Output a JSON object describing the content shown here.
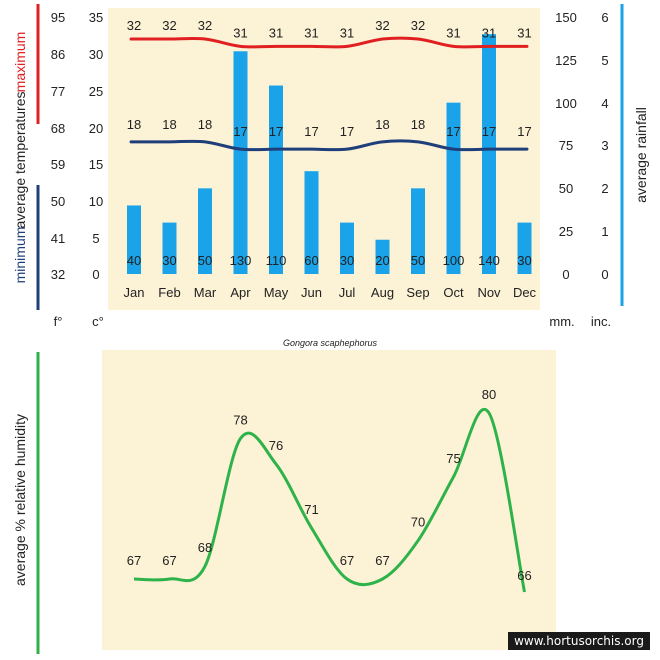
{
  "caption": "Gongora scaphephorus",
  "watermark": "www.hortusorchis.org",
  "colors": {
    "background": "#fcf2d6",
    "maximum": "#e02020",
    "minimum": "#1f3f7a",
    "rainfall_bar": "#1aa3e8",
    "rainfall_axis": "#1aa3e8",
    "humidity": "#2eb34a"
  },
  "labels": {
    "maximum": "maximum",
    "average_temperatures": "average  temperatures",
    "minimum": "minimum",
    "average_rainfall": "average  rainfall",
    "fahrenheit_unit": "f°",
    "celsius_unit": "c°",
    "mm_unit": "mm.",
    "inch_unit": "inc.",
    "humidity_axis": "average %  relative humidity"
  },
  "chart_data": [
    {
      "type": "bar",
      "categories": [
        "Jan",
        "Feb",
        "Mar",
        "Apr",
        "May",
        "Jun",
        "Jul",
        "Aug",
        "Sep",
        "Oct",
        "Nov",
        "Dec"
      ],
      "series": [
        {
          "name": "maximum",
          "kind": "line",
          "axis": "celsius",
          "values": [
            32,
            32,
            32,
            31,
            31,
            31,
            31,
            32,
            32,
            31,
            31,
            31
          ]
        },
        {
          "name": "minimum",
          "kind": "line",
          "axis": "celsius",
          "values": [
            18,
            18,
            18,
            17,
            17,
            17,
            17,
            18,
            18,
            17,
            17,
            17
          ]
        },
        {
          "name": "average  rainfall",
          "kind": "bar",
          "axis": "mm",
          "values": [
            40,
            30,
            50,
            130,
            110,
            60,
            30,
            20,
            50,
            100,
            140,
            30
          ]
        }
      ],
      "axes": {
        "fahrenheit": {
          "ticks": [
            "95",
            "86",
            "77",
            "68",
            "59",
            "50",
            "41",
            "32"
          ]
        },
        "celsius": {
          "range": [
            0,
            35
          ],
          "ticks": [
            "35",
            "30",
            "25",
            "20",
            "15",
            "10",
            "5",
            "0"
          ]
        },
        "mm": {
          "range": [
            0,
            150
          ],
          "ticks": [
            "150",
            "125",
            "100",
            "75",
            "50",
            "25",
            "0"
          ]
        },
        "inch": {
          "ticks": [
            "6",
            "5",
            "4",
            "3",
            "2",
            "1",
            "0"
          ]
        }
      },
      "grid": false
    },
    {
      "type": "line",
      "categories": [
        "Jan",
        "Feb",
        "Mar",
        "Apr",
        "May",
        "Jun",
        "Jul",
        "Aug",
        "Sep",
        "Oct",
        "Nov",
        "Dec"
      ],
      "series": [
        {
          "name": "average %  relative humidity",
          "values": [
            67,
            67,
            68,
            78,
            76,
            71,
            67,
            67,
            70,
            75,
            80,
            66
          ]
        }
      ],
      "grid": false
    }
  ]
}
